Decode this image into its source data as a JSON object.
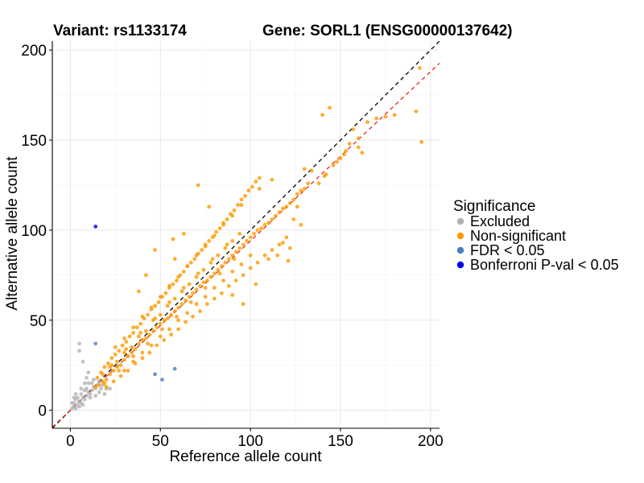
{
  "titles": {
    "variant": "Variant: rs1133174",
    "gene": "Gene: SORL1 (ENSG00000137642)"
  },
  "chart_data": {
    "type": "scatter",
    "title": "",
    "xlabel": "Reference allele count",
    "ylabel": "Alternative allele count",
    "xlim": [
      -10,
      205
    ],
    "ylim": [
      -10,
      205
    ],
    "x_ticks": [
      0,
      50,
      100,
      150,
      200
    ],
    "y_ticks": [
      0,
      50,
      100,
      150,
      200
    ],
    "grid": true,
    "legend_position": "right",
    "legend": {
      "title": "Significance",
      "entries": [
        {
          "label": "Excluded",
          "color": "#b3b3b3"
        },
        {
          "label": "Non-significant",
          "color": "#ff9900"
        },
        {
          "label": "FDR < 0.05",
          "color": "#4a7fbf"
        },
        {
          "label": "Bonferroni P-val < 0.05",
          "color": "#0000ee"
        }
      ]
    },
    "reference_lines": [
      {
        "name": "identity",
        "slope": 1.0,
        "intercept": 0,
        "color": "#000000",
        "style": "dashed"
      },
      {
        "name": "fit",
        "slope": 0.94,
        "intercept": 0,
        "color": "#e8271a",
        "style": "dashed"
      }
    ],
    "series": [
      {
        "name": "Excluded",
        "color": "#b3b3b3",
        "points": [
          [
            1,
            1
          ],
          [
            2,
            2
          ],
          [
            3,
            1
          ],
          [
            2,
            4
          ],
          [
            4,
            3
          ],
          [
            5,
            5
          ],
          [
            3,
            6
          ],
          [
            6,
            4
          ],
          [
            7,
            7
          ],
          [
            8,
            6
          ],
          [
            6,
            9
          ],
          [
            9,
            8
          ],
          [
            10,
            10
          ],
          [
            11,
            9
          ],
          [
            9,
            12
          ],
          [
            12,
            11
          ],
          [
            13,
            13
          ],
          [
            10,
            15
          ],
          [
            5,
            2
          ],
          [
            4,
            7
          ],
          [
            7,
            3
          ],
          [
            8,
            11
          ],
          [
            11,
            7
          ],
          [
            14,
            12
          ],
          [
            12,
            15
          ],
          [
            15,
            14
          ],
          [
            16,
            10
          ],
          [
            17,
            12
          ],
          [
            18,
            14
          ],
          [
            19,
            9
          ],
          [
            20,
            12
          ],
          [
            22,
            12
          ],
          [
            6,
            12
          ],
          [
            8,
            15
          ],
          [
            9,
            18
          ],
          [
            10,
            21
          ],
          [
            7,
            27
          ],
          [
            5,
            33
          ],
          [
            5,
            37
          ],
          [
            13,
            17
          ],
          [
            3,
            9
          ],
          [
            1,
            4
          ],
          [
            2,
            7
          ],
          [
            14,
            8
          ],
          [
            16,
            16
          ]
        ]
      },
      {
        "name": "Non-significant",
        "color": "#ff9900",
        "points": [
          [
            14,
            13
          ],
          [
            16,
            14
          ],
          [
            18,
            16
          ],
          [
            20,
            17
          ],
          [
            22,
            20
          ],
          [
            24,
            22
          ],
          [
            26,
            24
          ],
          [
            28,
            25
          ],
          [
            30,
            28
          ],
          [
            32,
            30
          ],
          [
            34,
            32
          ],
          [
            36,
            34
          ],
          [
            38,
            37
          ],
          [
            40,
            39
          ],
          [
            42,
            40
          ],
          [
            44,
            42
          ],
          [
            46,
            44
          ],
          [
            48,
            46
          ],
          [
            50,
            48
          ],
          [
            52,
            50
          ],
          [
            54,
            51
          ],
          [
            56,
            53
          ],
          [
            58,
            55
          ],
          [
            60,
            57
          ],
          [
            62,
            59
          ],
          [
            64,
            61
          ],
          [
            66,
            63
          ],
          [
            68,
            65
          ],
          [
            70,
            67
          ],
          [
            72,
            69
          ],
          [
            74,
            71
          ],
          [
            76,
            72
          ],
          [
            78,
            74
          ],
          [
            80,
            76
          ],
          [
            82,
            78
          ],
          [
            84,
            80
          ],
          [
            86,
            82
          ],
          [
            88,
            84
          ],
          [
            90,
            86
          ],
          [
            92,
            88
          ],
          [
            94,
            90
          ],
          [
            96,
            92
          ],
          [
            98,
            94
          ],
          [
            100,
            96
          ],
          [
            102,
            98
          ],
          [
            104,
            100
          ],
          [
            106,
            101
          ],
          [
            108,
            103
          ],
          [
            110,
            104
          ],
          [
            112,
            106
          ],
          [
            114,
            108
          ],
          [
            116,
            110
          ],
          [
            118,
            112
          ],
          [
            120,
            113
          ],
          [
            122,
            115
          ],
          [
            124,
            117
          ],
          [
            126,
            120
          ],
          [
            128,
            122
          ],
          [
            130,
            123
          ],
          [
            132,
            126
          ],
          [
            17,
            21
          ],
          [
            19,
            24
          ],
          [
            21,
            26
          ],
          [
            23,
            29
          ],
          [
            25,
            31
          ],
          [
            27,
            33
          ],
          [
            29,
            36
          ],
          [
            31,
            38
          ],
          [
            33,
            41
          ],
          [
            35,
            43
          ],
          [
            37,
            46
          ],
          [
            39,
            48
          ],
          [
            41,
            51
          ],
          [
            43,
            53
          ],
          [
            45,
            56
          ],
          [
            47,
            58
          ],
          [
            49,
            60
          ],
          [
            51,
            63
          ],
          [
            53,
            65
          ],
          [
            55,
            68
          ],
          [
            57,
            70
          ],
          [
            59,
            72
          ],
          [
            61,
            75
          ],
          [
            63,
            77
          ],
          [
            65,
            80
          ],
          [
            67,
            82
          ],
          [
            69,
            84
          ],
          [
            71,
            87
          ],
          [
            73,
            89
          ],
          [
            75,
            92
          ],
          [
            77,
            94
          ],
          [
            79,
            96
          ],
          [
            81,
            99
          ],
          [
            83,
            101
          ],
          [
            85,
            104
          ],
          [
            87,
            106
          ],
          [
            89,
            109
          ],
          [
            91,
            111
          ],
          [
            93,
            114
          ],
          [
            95,
            117
          ],
          [
            97,
            119
          ],
          [
            99,
            122
          ],
          [
            101,
            124
          ],
          [
            103,
            127
          ],
          [
            105,
            129
          ],
          [
            20,
            13
          ],
          [
            24,
            16
          ],
          [
            28,
            19
          ],
          [
            32,
            22
          ],
          [
            36,
            26
          ],
          [
            40,
            29
          ],
          [
            44,
            32
          ],
          [
            48,
            36
          ],
          [
            52,
            39
          ],
          [
            56,
            42
          ],
          [
            60,
            45
          ],
          [
            64,
            49
          ],
          [
            68,
            52
          ],
          [
            72,
            55
          ],
          [
            76,
            59
          ],
          [
            80,
            62
          ],
          [
            84,
            65
          ],
          [
            88,
            69
          ],
          [
            92,
            72
          ],
          [
            96,
            75
          ],
          [
            100,
            79
          ],
          [
            104,
            82
          ],
          [
            108,
            86
          ],
          [
            112,
            89
          ],
          [
            116,
            92
          ],
          [
            120,
            96
          ],
          [
            25,
            35
          ],
          [
            30,
            40
          ],
          [
            35,
            46
          ],
          [
            40,
            52
          ],
          [
            45,
            57
          ],
          [
            50,
            63
          ],
          [
            55,
            69
          ],
          [
            60,
            74
          ],
          [
            65,
            80
          ],
          [
            70,
            86
          ],
          [
            75,
            91
          ],
          [
            80,
            97
          ],
          [
            85,
            103
          ],
          [
            90,
            108
          ],
          [
            95,
            114
          ],
          [
            30,
            22
          ],
          [
            35,
            27
          ],
          [
            40,
            32
          ],
          [
            45,
            36
          ],
          [
            50,
            41
          ],
          [
            55,
            45
          ],
          [
            60,
            50
          ],
          [
            65,
            54
          ],
          [
            70,
            59
          ],
          [
            75,
            63
          ],
          [
            80,
            68
          ],
          [
            85,
            72
          ],
          [
            90,
            77
          ],
          [
            95,
            81
          ],
          [
            100,
            86
          ],
          [
            18,
            20
          ],
          [
            22,
            24
          ],
          [
            26,
            27
          ],
          [
            30,
            32
          ],
          [
            34,
            35
          ],
          [
            38,
            41
          ],
          [
            42,
            44
          ],
          [
            46,
            50
          ],
          [
            50,
            53
          ],
          [
            54,
            58
          ],
          [
            58,
            62
          ],
          [
            62,
            66
          ],
          [
            66,
            70
          ],
          [
            70,
            74
          ],
          [
            74,
            78
          ],
          [
            78,
            82
          ],
          [
            82,
            86
          ],
          [
            86,
            90
          ],
          [
            90,
            94
          ],
          [
            94,
            98
          ],
          [
            15,
            18
          ],
          [
            19,
            15
          ],
          [
            23,
            25
          ],
          [
            27,
            22
          ],
          [
            31,
            34
          ],
          [
            35,
            30
          ],
          [
            39,
            43
          ],
          [
            43,
            37
          ],
          [
            47,
            51
          ],
          [
            51,
            45
          ],
          [
            55,
            60
          ],
          [
            59,
            52
          ],
          [
            63,
            68
          ],
          [
            67,
            60
          ],
          [
            71,
            76
          ],
          [
            75,
            68
          ],
          [
            79,
            84
          ],
          [
            83,
            76
          ],
          [
            87,
            92
          ],
          [
            91,
            84
          ],
          [
            138,
            126
          ],
          [
            142,
            131
          ],
          [
            146,
            136
          ],
          [
            150,
            140
          ],
          [
            155,
            148
          ],
          [
            160,
            151
          ],
          [
            152,
            142
          ],
          [
            148,
            138
          ],
          [
            144,
            168
          ],
          [
            140,
            164
          ],
          [
            160,
            146
          ],
          [
            162,
            143
          ],
          [
            130,
            134
          ],
          [
            126,
            113
          ],
          [
            128,
            103
          ],
          [
            121,
            83
          ],
          [
            124,
            106
          ],
          [
            153,
            144
          ],
          [
            134,
            133
          ],
          [
            141,
            130
          ],
          [
            157,
            156
          ],
          [
            165,
            160
          ],
          [
            170,
            162
          ],
          [
            175,
            163
          ],
          [
            180,
            164
          ],
          [
            192,
            166
          ],
          [
            195,
            149
          ],
          [
            194,
            190
          ],
          [
            118,
            93
          ],
          [
            122,
            90
          ],
          [
            115,
            86
          ],
          [
            110,
            84
          ],
          [
            57,
            95
          ],
          [
            63,
            98
          ],
          [
            58,
            84
          ],
          [
            71,
            125
          ],
          [
            77,
            113
          ],
          [
            105,
            123
          ],
          [
            112,
            128
          ],
          [
            47,
            89
          ],
          [
            42,
            75
          ],
          [
            38,
            66
          ],
          [
            96,
            59
          ],
          [
            90,
            64
          ],
          [
            103,
            70
          ]
        ]
      },
      {
        "name": "FDR < 0.05",
        "color": "#4a7fbf",
        "points": [
          [
            14,
            37
          ],
          [
            47,
            20
          ],
          [
            51,
            17
          ],
          [
            58,
            23
          ]
        ]
      },
      {
        "name": "Bonferroni P-val < 0.05",
        "color": "#0000ee",
        "points": [
          [
            14,
            102
          ]
        ]
      }
    ]
  }
}
